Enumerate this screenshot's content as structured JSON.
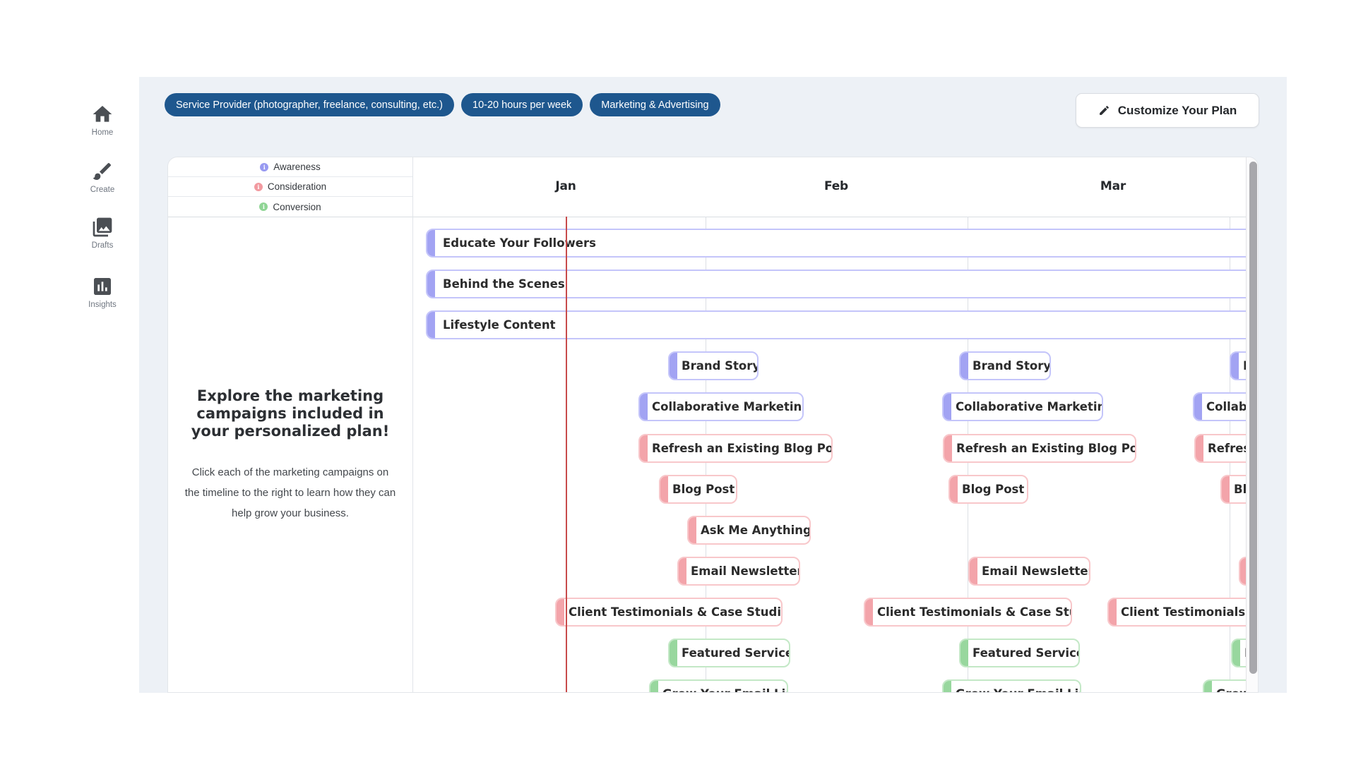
{
  "sidebar": {
    "items": [
      {
        "id": "home",
        "label": "Home"
      },
      {
        "id": "create",
        "label": "Create"
      },
      {
        "id": "drafts",
        "label": "Drafts"
      },
      {
        "id": "insights",
        "label": "Insights"
      }
    ]
  },
  "topbar": {
    "badges": [
      "Service Provider (photographer, freelance, consulting, etc.)",
      "10-20 hours per week",
      "Marketing & Advertising"
    ],
    "badge_color": "#1e578e",
    "customize_label": "Customize Your Plan"
  },
  "legend": {
    "items": [
      {
        "label": "Awareness",
        "color": "#989af1"
      },
      {
        "label": "Consideration",
        "color": "#f29aa0"
      },
      {
        "label": "Conversion",
        "color": "#8fd595"
      }
    ],
    "info_glyph": "i"
  },
  "intro": {
    "heading": "Explore the marketing campaigns included in your personalized plan!",
    "body": "Click each of the marketing campaigns on the timeline to the right to learn how they can help grow your business."
  },
  "help_label": "?",
  "chart_data": {
    "type": "gantt-timeline",
    "months_visible": [
      "Jan",
      "Feb",
      "Mar"
    ],
    "today_marker": "mid-January",
    "today_line_color": "#c84b4b",
    "stage_colors": {
      "awareness": {
        "cap": "#a2a3f3",
        "border": "#c4c5fa"
      },
      "consideration": {
        "cap": "#f3a4aa",
        "border": "#f8c7ca"
      },
      "conversion": {
        "cap": "#98d79e",
        "border": "#c3e8c6"
      }
    },
    "rows": [
      {
        "label": "Educate Your Followers",
        "stage": "awareness",
        "kind": "continuous",
        "span": "Jan through Mar+"
      },
      {
        "label": "Behind the Scenes",
        "stage": "awareness",
        "kind": "continuous",
        "span": "Jan through Mar+"
      },
      {
        "label": "Lifestyle Content",
        "stage": "awareness",
        "kind": "continuous",
        "span": "Jan through Mar+"
      },
      {
        "label": "Brand Story",
        "stage": "awareness",
        "kind": "recurring",
        "occurrences": 3
      },
      {
        "label": "Collaborative Marketing",
        "stage": "awareness",
        "kind": "recurring",
        "occurrences": 3
      },
      {
        "label": "Refresh an Existing Blog Post",
        "stage": "consideration",
        "kind": "recurring",
        "occurrences": 3
      },
      {
        "label": "Blog Post",
        "stage": "consideration",
        "kind": "recurring",
        "occurrences": 3
      },
      {
        "label": "Ask Me Anything",
        "stage": "consideration",
        "kind": "recurring",
        "occurrences": 1
      },
      {
        "label": "Email Newsletter",
        "stage": "consideration",
        "kind": "recurring",
        "occurrences": 3
      },
      {
        "label": "Client Testimonials & Case Studies",
        "stage": "consideration",
        "kind": "recurring",
        "occurrences": 3
      },
      {
        "label": "Featured Service",
        "stage": "conversion",
        "kind": "recurring",
        "occurrences": 3
      },
      {
        "label": "Grow Your Email List",
        "stage": "conversion",
        "kind": "recurring",
        "occurrences": 3
      }
    ]
  }
}
